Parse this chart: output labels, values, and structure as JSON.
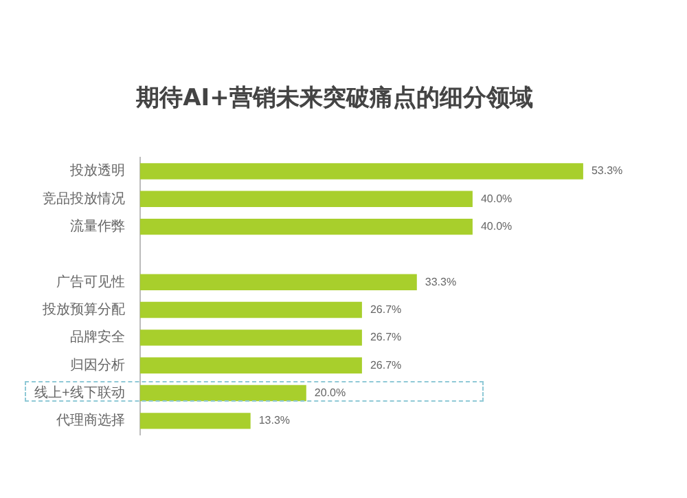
{
  "chart_data": {
    "type": "bar",
    "orientation": "horizontal",
    "title": "期待AI+营销未来突破痛点的细分领域",
    "categories": [
      "投放透明",
      "竞品投放情况",
      "流量作弊",
      null,
      "广告可见性",
      "投放预算分配",
      "品牌安全",
      "归因分析",
      "线上+线下联动",
      "代理商选择"
    ],
    "values": [
      53.3,
      40.0,
      40.0,
      null,
      33.3,
      26.7,
      26.7,
      26.7,
      20.0,
      13.3
    ],
    "value_labels": [
      "53.3%",
      "40.0%",
      "40.0%",
      null,
      "33.3%",
      "26.7%",
      "26.7%",
      "26.7%",
      "20.0%",
      "13.3%"
    ],
    "color": "#a8cf2c",
    "tick_labels": "y",
    "legend": false
  }
}
